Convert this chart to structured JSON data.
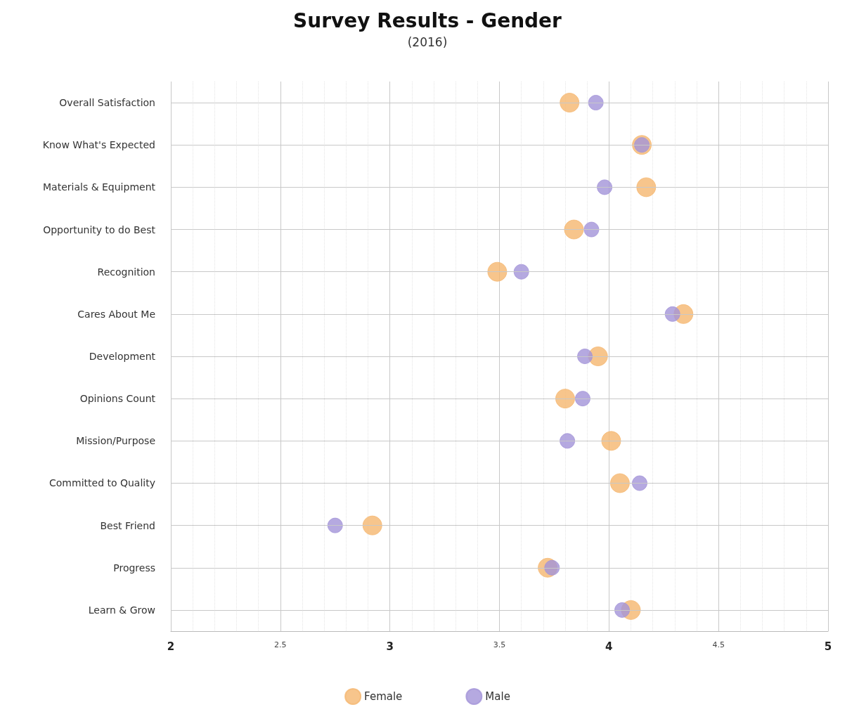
{
  "chart_data": {
    "type": "scatter",
    "title": "Survey Results - Gender",
    "subtitle": "(2016)",
    "orientation": "horizontal",
    "categories": [
      "Overall Satisfaction",
      "Know What's Expected",
      "Materials & Equipment",
      "Opportunity to do Best",
      "Recognition",
      "Cares About Me",
      "Development",
      "Opinions Count",
      "Mission/Purpose",
      "Committed to Quality",
      "Best Friend",
      "Progress",
      "Learn & Grow"
    ],
    "series": [
      {
        "name": "Female",
        "color": "#f5b76f",
        "values": [
          3.82,
          4.15,
          4.17,
          3.84,
          3.49,
          4.34,
          3.95,
          3.8,
          4.01,
          4.05,
          2.92,
          3.72,
          4.1
        ]
      },
      {
        "name": "Male",
        "color": "#a294d8",
        "values": [
          3.94,
          4.15,
          3.98,
          3.92,
          3.6,
          4.29,
          3.89,
          3.88,
          3.81,
          4.14,
          2.75,
          3.74,
          4.06
        ]
      }
    ],
    "xlim": [
      2,
      5
    ],
    "xticks": [
      2,
      2.5,
      3,
      3.5,
      4,
      4.5,
      5
    ],
    "grid": true,
    "legend": "bottom",
    "marker": "circle"
  }
}
